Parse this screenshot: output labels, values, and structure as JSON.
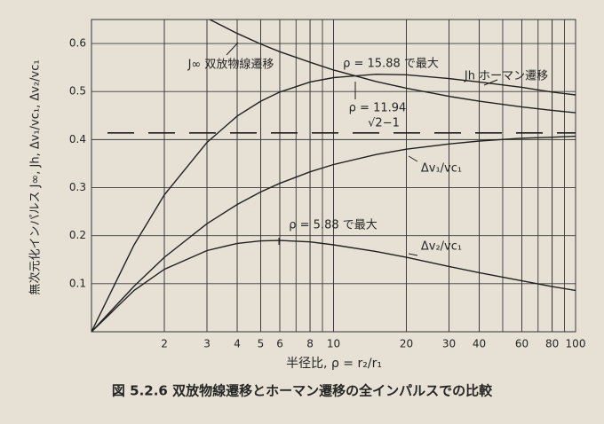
{
  "chart_data": {
    "type": "line",
    "title": "図 5.2.6  双放物線遷移とホーマン遷移の全インパルスでの比較",
    "x_label": "半径比, ρ = r₂/r₁",
    "y_label": "無次元化インパルス J∞, Jh, Δv₁/vc₁, Δv₂/vc₁",
    "x": [
      1,
      1.5,
      2,
      3,
      4,
      5,
      6,
      8,
      10,
      15,
      20,
      30,
      40,
      60,
      80,
      100
    ],
    "series": [
      {
        "name": "J∞ 双放物線遷移",
        "color": "#202020",
        "values": [
          null,
          null,
          null,
          0.653,
          0.621,
          0.599,
          0.583,
          0.561,
          0.545,
          0.521,
          0.507,
          0.49,
          0.48,
          0.468,
          0.461,
          0.456
        ]
      },
      {
        "name": "Jh ホーマン遷移",
        "color": "#202020",
        "values": [
          0,
          0.181,
          0.285,
          0.394,
          0.449,
          0.48,
          0.499,
          0.52,
          0.529,
          0.536,
          0.535,
          0.527,
          0.52,
          0.509,
          0.499,
          0.493
        ]
      },
      {
        "name": "Δv₁/vc₁",
        "color": "#202020",
        "values": [
          0,
          0.095,
          0.155,
          0.225,
          0.265,
          0.291,
          0.309,
          0.333,
          0.348,
          0.369,
          0.38,
          0.391,
          0.397,
          0.403,
          0.405,
          0.407
        ]
      },
      {
        "name": "Δv₂/vc₁",
        "color": "#202020",
        "values": [
          0,
          0.086,
          0.13,
          0.169,
          0.184,
          0.189,
          0.19,
          0.187,
          0.181,
          0.167,
          0.155,
          0.136,
          0.123,
          0.106,
          0.094,
          0.086
        ]
      }
    ],
    "asymptote": {
      "value": 0.414,
      "label": "√2−1"
    },
    "annotations": [
      "ρ = 15.88 で最大",
      "ρ = 11.94",
      "ρ = 5.88 で最大"
    ],
    "xlim": [
      1,
      100
    ],
    "ylim": [
      0,
      0.65
    ],
    "xticks": [
      2,
      3,
      4,
      5,
      6,
      8,
      10,
      20,
      30,
      40,
      60,
      80,
      100
    ],
    "yticks": [
      0.1,
      0.2,
      0.3,
      0.4,
      0.5,
      0.6
    ],
    "xscale": "log",
    "grid": true
  }
}
